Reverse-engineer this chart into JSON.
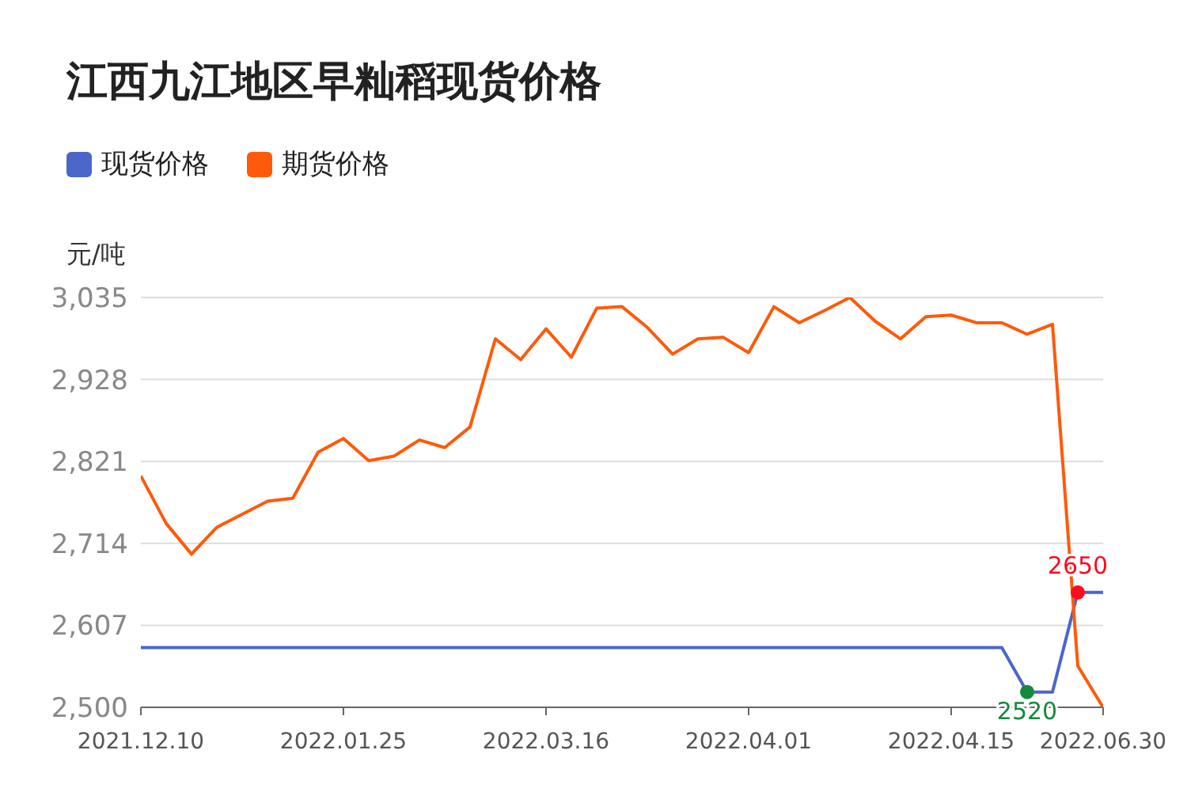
{
  "chart_data": {
    "type": "line",
    "title": "江西九江地区早籼稻现货价格",
    "ylabel": "元/吨",
    "categories": [
      "2021.12.10",
      null,
      null,
      null,
      null,
      null,
      null,
      null,
      "2022.01.25",
      null,
      null,
      null,
      null,
      null,
      null,
      null,
      "2022.03.16",
      null,
      null,
      null,
      null,
      null,
      null,
      null,
      "2022.04.01",
      null,
      null,
      null,
      null,
      null,
      null,
      null,
      "2022.04.15",
      null,
      null,
      null,
      null,
      null,
      "2022.06.30"
    ],
    "series": [
      {
        "name": "现货价格",
        "color": "#4a66c8",
        "values": [
          2578,
          2578,
          2578,
          2578,
          2578,
          2578,
          2578,
          2578,
          2578,
          2578,
          2578,
          2578,
          2578,
          2578,
          2578,
          2578,
          2578,
          2578,
          2578,
          2578,
          2578,
          2578,
          2578,
          2578,
          2578,
          2578,
          2578,
          2578,
          2578,
          2578,
          2578,
          2578,
          2578,
          2578,
          2578,
          2520,
          2520,
          2650,
          2650
        ],
        "value_labels": [
          null,
          null,
          null,
          null,
          null,
          null,
          null,
          null,
          null,
          null,
          null,
          null,
          null,
          null,
          null,
          null,
          null,
          null,
          null,
          null,
          null,
          null,
          null,
          null,
          null,
          null,
          null,
          null,
          null,
          null,
          null,
          null,
          null,
          null,
          null,
          "2520",
          null,
          "2650",
          null
        ]
      },
      {
        "name": "期货价格",
        "color": "#ff5a0a",
        "values": [
          2802,
          2740,
          2700,
          2735,
          2752,
          2769,
          2773,
          2833,
          2851,
          2822,
          2828,
          2849,
          2839,
          2866,
          2981,
          2954,
          2994,
          2957,
          3021,
          3023,
          2996,
          2961,
          2981,
          2983,
          2963,
          3023,
          3002,
          3018,
          3035,
          3004,
          2981,
          3010,
          3012,
          3002,
          3002,
          2987,
          3000,
          2554,
          2500
        ]
      }
    ],
    "ylim": [
      2500,
      3035
    ],
    "yticks": [
      {
        "value": 2500,
        "label": "2,500"
      },
      {
        "value": 2607,
        "label": "2,607"
      },
      {
        "value": 2714,
        "label": "2,714"
      },
      {
        "value": 2821,
        "label": "2,821"
      },
      {
        "value": 2928,
        "label": "2,928"
      },
      {
        "value": 3035,
        "label": "3,035"
      }
    ],
    "grid": "y",
    "legend": "top left",
    "marker": "none",
    "line_style": "solid"
  }
}
